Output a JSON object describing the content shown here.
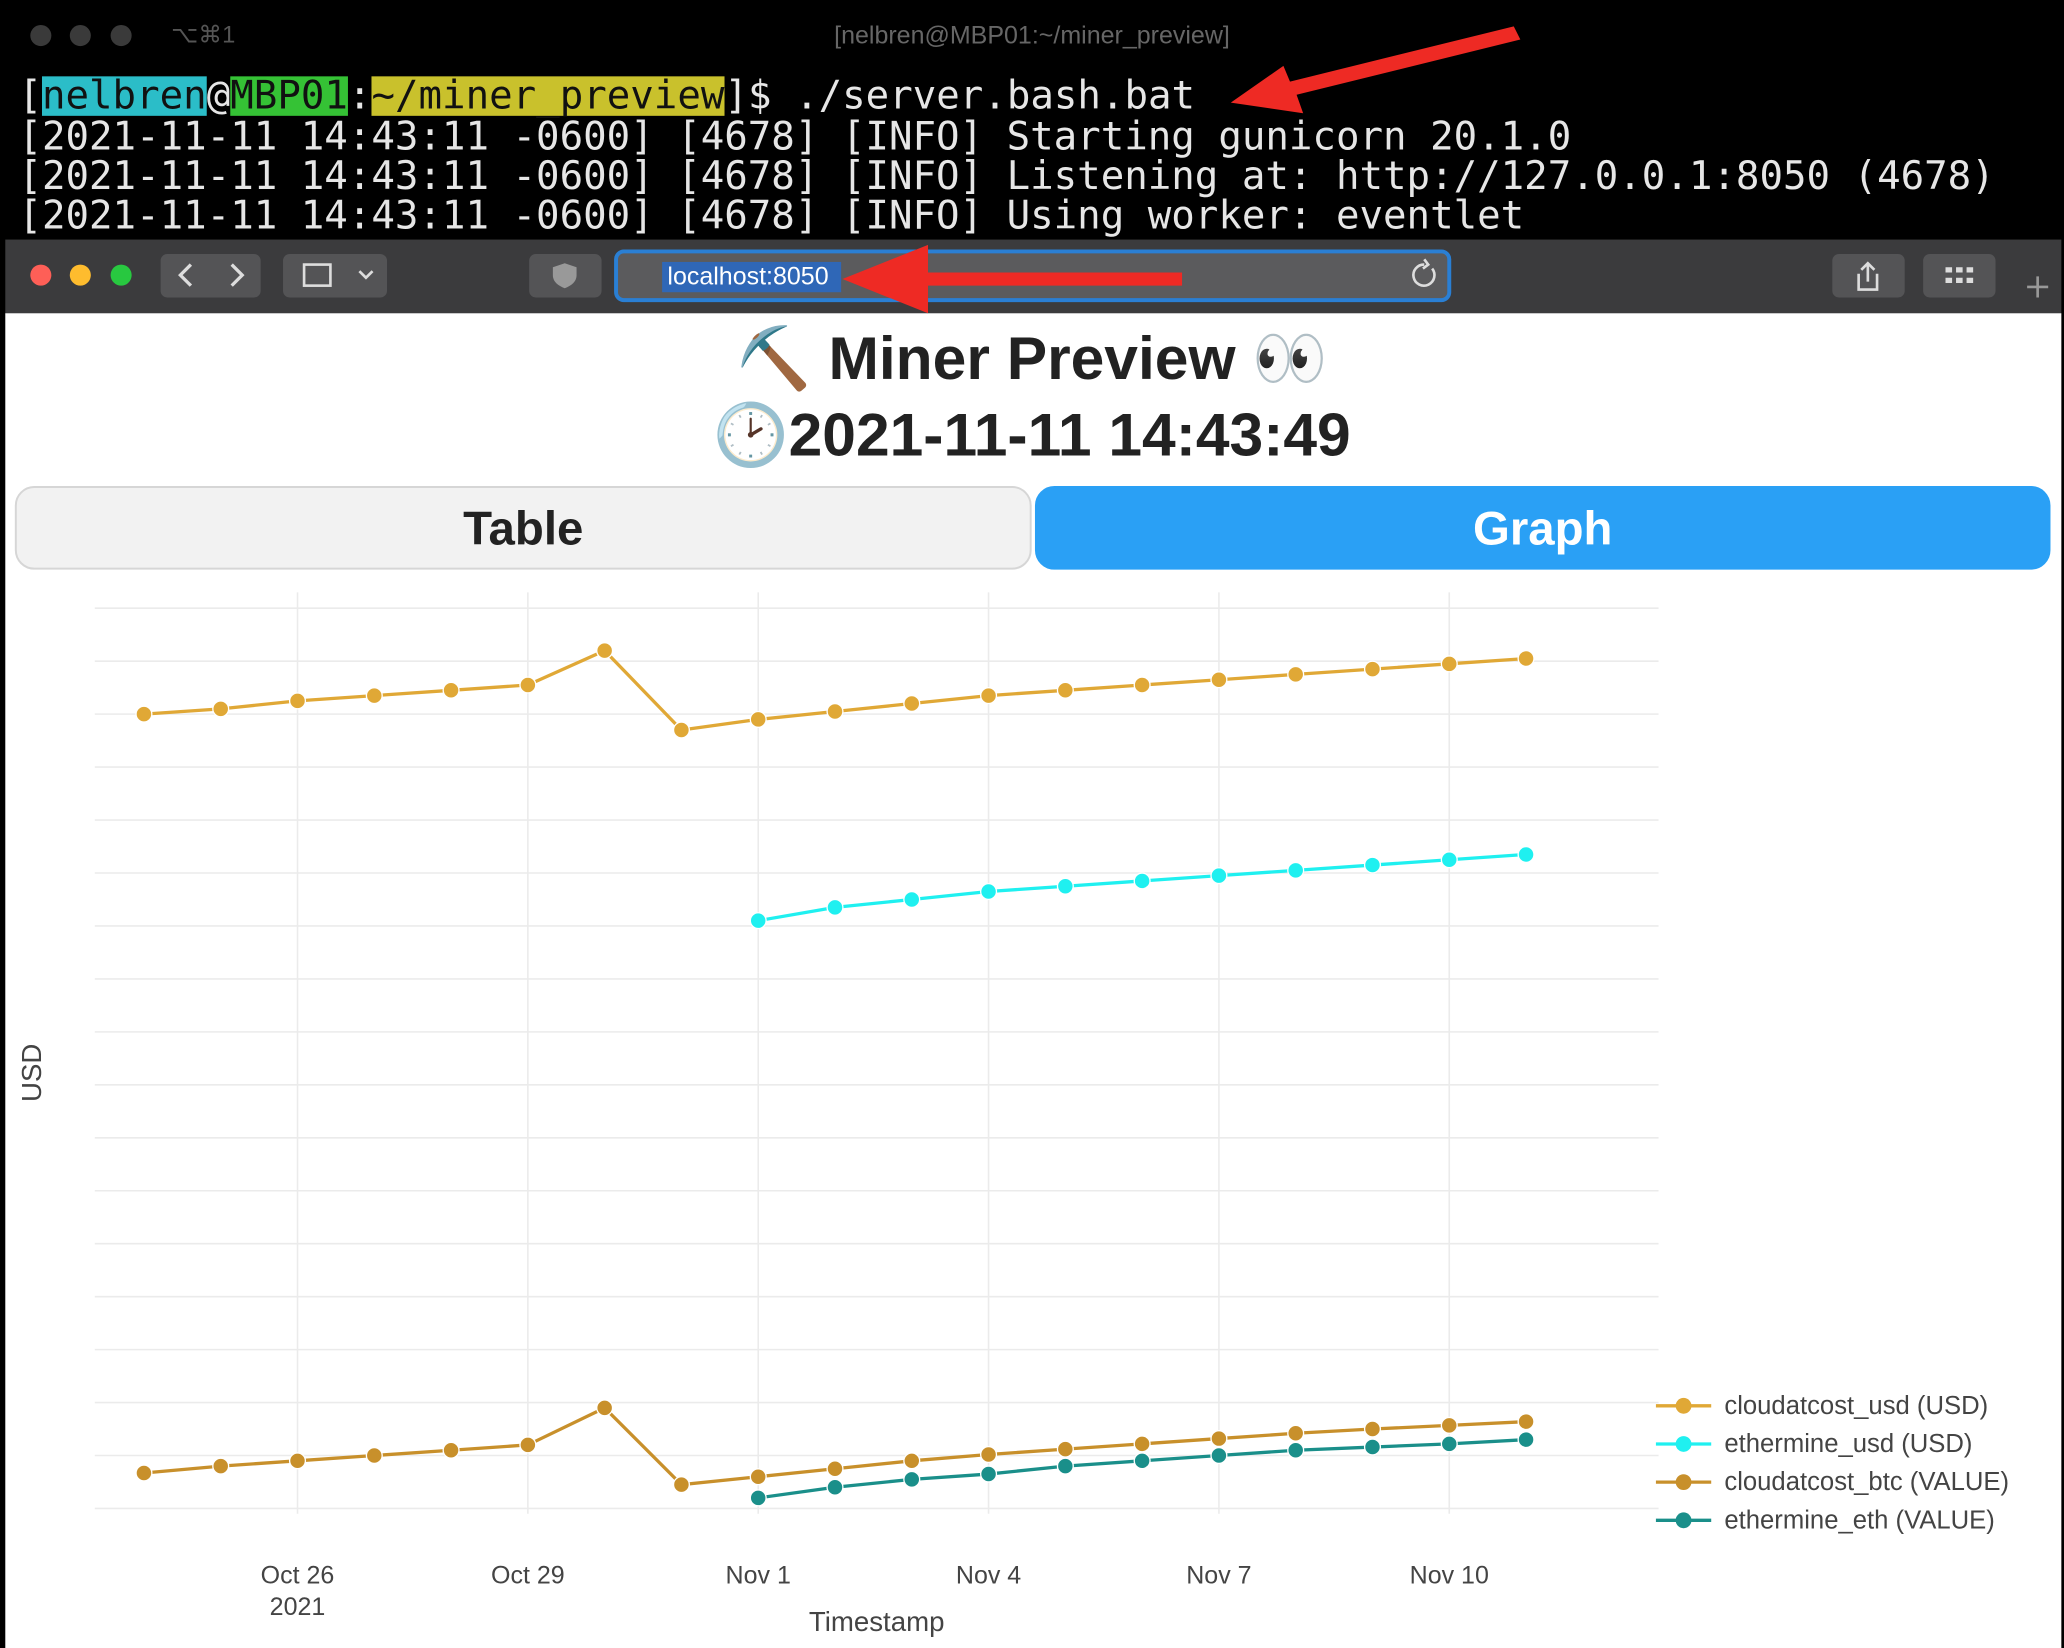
{
  "terminal": {
    "tab_shortcut": "⌥⌘1",
    "window_title": "[nelbren@MBP01:~/miner_preview]",
    "prompt": [
      {
        "text": "["
      },
      {
        "text": "nelbren",
        "highlight": "#2bbdc8"
      },
      {
        "text": "@"
      },
      {
        "text": "MBP01",
        "highlight": "#35c235"
      },
      {
        "text": ":"
      },
      {
        "text": "~/miner_preview",
        "highlight": "#c9c12c"
      },
      {
        "text": "]$ ./server.bash.bat"
      }
    ],
    "log_lines": [
      "[2021-11-11 14:43:11 -0600] [4678] [INFO] Starting gunicorn 20.1.0",
      "[2021-11-11 14:43:11 -0600] [4678] [INFO] Listening at: http://127.0.0.1:8050 (4678)",
      "[2021-11-11 14:43:11 -0600] [4678] [INFO] Using worker: eventlet"
    ]
  },
  "browser": {
    "url": "localhost:8050"
  },
  "page": {
    "title": "⛏️ Miner Preview 👀",
    "timestamp": "🕑2021-11-11 14:43:49",
    "tabs": [
      {
        "label": "Table",
        "selected": false
      },
      {
        "label": "Graph",
        "selected": true
      }
    ]
  },
  "chart_data": {
    "type": "line",
    "x_label": "Timestamp",
    "y_label": "USD",
    "x": [
      "2021-10-24",
      "2021-10-25",
      "2021-10-26",
      "2021-10-27",
      "2021-10-28",
      "2021-10-29",
      "2021-10-30",
      "2021-10-31",
      "2021-11-01",
      "2021-11-02",
      "2021-11-03",
      "2021-11-04",
      "2021-11-05",
      "2021-11-06",
      "2021-11-07",
      "2021-11-08",
      "2021-11-09",
      "2021-11-10",
      "2021-11-11"
    ],
    "series": [
      {
        "name": "cloudatcost_usd (USD)",
        "color": "#e0a836",
        "values": [
          15.0,
          15.1,
          15.25,
          15.35,
          15.45,
          15.55,
          16.2,
          14.7,
          14.9,
          15.05,
          15.2,
          15.35,
          15.45,
          15.55,
          15.65,
          15.75,
          15.85,
          15.95,
          16.05
        ]
      },
      {
        "name": "ethermine_usd (USD)",
        "color": "#1ff0f0",
        "values": [
          null,
          null,
          null,
          null,
          null,
          null,
          null,
          null,
          11.1,
          11.35,
          11.5,
          11.65,
          11.75,
          11.85,
          11.95,
          12.05,
          12.15,
          12.25,
          12.35
        ]
      },
      {
        "name": "cloudatcost_btc (VALUE)",
        "color": "#c8902b",
        "values": [
          0.67,
          0.8,
          0.9,
          1.0,
          1.1,
          1.2,
          1.9,
          0.45,
          0.6,
          0.75,
          0.9,
          1.02,
          1.12,
          1.22,
          1.32,
          1.42,
          1.5,
          1.57,
          1.64
        ]
      },
      {
        "name": "ethermine_eth (VALUE)",
        "color": "#1a8f8a",
        "values": [
          null,
          null,
          null,
          null,
          null,
          null,
          null,
          null,
          0.2,
          0.4,
          0.55,
          0.65,
          0.8,
          0.9,
          1.0,
          1.1,
          1.16,
          1.22,
          1.3
        ]
      }
    ],
    "xlim": [
      "2021-10-23",
      "2021-11-13"
    ],
    "xticks": [
      {
        "value": "2021-10-26",
        "label": "Oct 26"
      },
      {
        "value": "2021-10-29",
        "label": "Oct 29"
      },
      {
        "value": "2021-11-01",
        "label": "Nov 1"
      },
      {
        "value": "2021-11-04",
        "label": "Nov 4"
      },
      {
        "value": "2021-11-07",
        "label": "Nov 7"
      },
      {
        "value": "2021-11-10",
        "label": "Nov 10"
      }
    ],
    "xtick_year": "2021",
    "ylim": [
      0,
      17.3
    ],
    "yticks": [
      0,
      1,
      2,
      3,
      4,
      5,
      6,
      7,
      8,
      9,
      10,
      11,
      12,
      13,
      14,
      15,
      16,
      17
    ],
    "grid": true,
    "legend": "right"
  }
}
